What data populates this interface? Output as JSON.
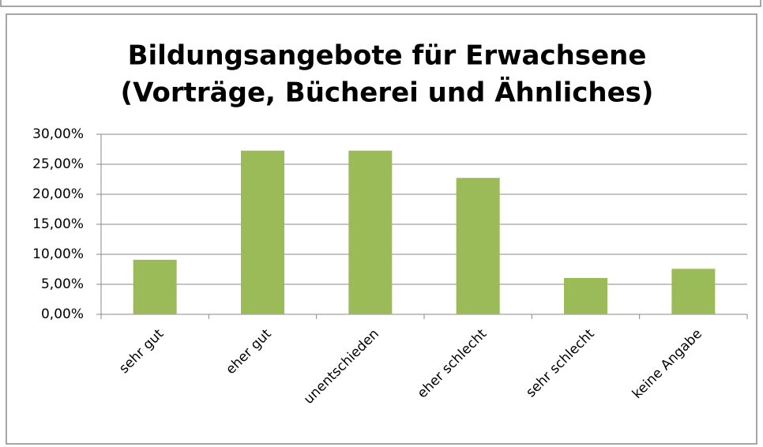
{
  "chart_data": {
    "type": "bar",
    "title": [
      "Bildungsangebote für Erwachsene",
      "(Vorträge, Bücherei und Ähnliches)"
    ],
    "categories": [
      "sehr gut",
      "eher gut",
      "unentschieden",
      "eher schlecht",
      "sehr schlecht",
      "keine Angabe"
    ],
    "values": [
      9.09,
      27.27,
      27.27,
      22.73,
      6.06,
      7.58
    ],
    "color": "#9bbb59",
    "ylim": [
      0,
      30
    ],
    "yticks": [
      {
        "value": 0,
        "label": "0,00%"
      },
      {
        "value": 5,
        "label": "5,00%"
      },
      {
        "value": 10,
        "label": "10,00%"
      },
      {
        "value": 15,
        "label": "15,00%"
      },
      {
        "value": 20,
        "label": "20,00%"
      },
      {
        "value": 25,
        "label": "25,00%"
      },
      {
        "value": 30,
        "label": "30,00%"
      }
    ],
    "grid": true
  }
}
